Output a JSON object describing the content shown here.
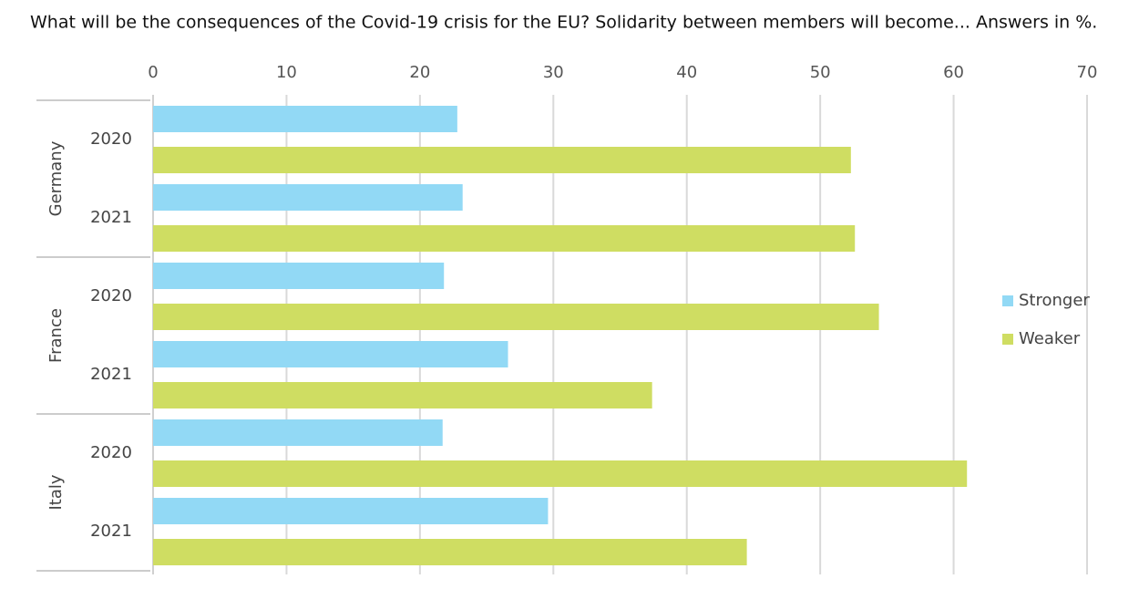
{
  "chart_data": {
    "type": "grouped-hbar",
    "title": "What will be the consequences of the Covid-19 crisis for the EU? Solidarity between members will become... Answers in %.",
    "groups": [
      {
        "name": "Germany",
        "categories": [
          "2020",
          "2021"
        ]
      },
      {
        "name": "France",
        "categories": [
          "2020",
          "2021"
        ]
      },
      {
        "name": "Italy",
        "categories": [
          "2020",
          "2021"
        ]
      }
    ],
    "series": [
      {
        "name": "Stronger",
        "color": "#92d9f5",
        "values": [
          22.8,
          23.2,
          21.8,
          26.6,
          21.7,
          29.6
        ]
      },
      {
        "name": "Weaker",
        "color": "#cfdd62",
        "values": [
          52.3,
          52.6,
          54.4,
          37.4,
          61.0,
          44.5
        ]
      }
    ],
    "xlim": [
      0,
      70
    ],
    "xticks": [
      0,
      10,
      20,
      30,
      40,
      50,
      60,
      70
    ],
    "grid": true,
    "legend": "right"
  }
}
